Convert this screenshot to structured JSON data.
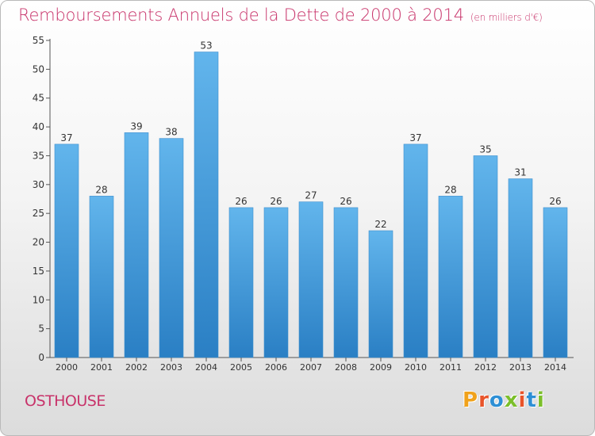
{
  "title": "Remboursements Annuels de la Dette de 2000 à 2014",
  "unit": "(en milliers d'€)",
  "commune": "OSTHOUSE",
  "brand": "Proxiti",
  "brand_colors": [
    "#f0a21c",
    "#e8542a",
    "#2d8fd5",
    "#7bbf2a",
    "#e8542a",
    "#2d8fd5",
    "#7bbf2a"
  ],
  "colors": {
    "title": "#c8336a",
    "bar_top": "#62b5ec",
    "bar_bottom": "#2a7fc4"
  },
  "chart_data": {
    "type": "bar",
    "categories": [
      "2000",
      "2001",
      "2002",
      "2003",
      "2004",
      "2005",
      "2006",
      "2007",
      "2008",
      "2009",
      "2010",
      "2011",
      "2012",
      "2013",
      "2014"
    ],
    "values": [
      37,
      28,
      39,
      38,
      53,
      26,
      26,
      27,
      26,
      22,
      37,
      28,
      35,
      31,
      26
    ],
    "ylim": [
      0,
      55
    ],
    "yticks": [
      0,
      5,
      10,
      15,
      20,
      25,
      30,
      35,
      40,
      45,
      50,
      55
    ],
    "grid": false
  }
}
